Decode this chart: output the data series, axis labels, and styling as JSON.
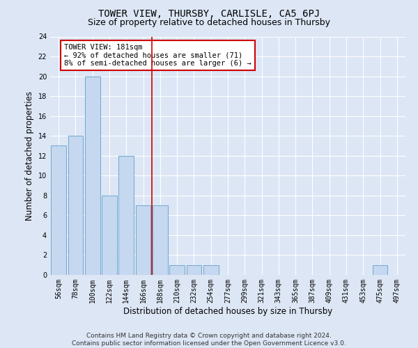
{
  "title": "TOWER VIEW, THURSBY, CARLISLE, CA5 6PJ",
  "subtitle": "Size of property relative to detached houses in Thursby",
  "xlabel": "Distribution of detached houses by size in Thursby",
  "ylabel": "Number of detached properties",
  "categories": [
    "56sqm",
    "78sqm",
    "100sqm",
    "122sqm",
    "144sqm",
    "166sqm",
    "188sqm",
    "210sqm",
    "232sqm",
    "254sqm",
    "277sqm",
    "299sqm",
    "321sqm",
    "343sqm",
    "365sqm",
    "387sqm",
    "409sqm",
    "431sqm",
    "453sqm",
    "475sqm",
    "497sqm"
  ],
  "values": [
    13,
    14,
    20,
    8,
    12,
    7,
    7,
    1,
    1,
    1,
    0,
    0,
    0,
    0,
    0,
    0,
    0,
    0,
    0,
    1,
    0
  ],
  "bar_color": "#c5d8ef",
  "bar_edge_color": "#6fa8d0",
  "background_color": "#dce6f5",
  "grid_color": "#ffffff",
  "vline_x_index": 6,
  "vline_color": "#cc0000",
  "annotation_text": "TOWER VIEW: 181sqm\n← 92% of detached houses are smaller (71)\n8% of semi-detached houses are larger (6) →",
  "annotation_box_color": "#ffffff",
  "annotation_box_edge": "#cc0000",
  "ylim": [
    0,
    24
  ],
  "yticks": [
    0,
    2,
    4,
    6,
    8,
    10,
    12,
    14,
    16,
    18,
    20,
    22,
    24
  ],
  "footnote": "Contains HM Land Registry data © Crown copyright and database right 2024.\nContains public sector information licensed under the Open Government Licence v3.0.",
  "title_fontsize": 10,
  "subtitle_fontsize": 9,
  "xlabel_fontsize": 8.5,
  "ylabel_fontsize": 8.5,
  "tick_fontsize": 7,
  "annotation_fontsize": 7.5,
  "footnote_fontsize": 6.5
}
